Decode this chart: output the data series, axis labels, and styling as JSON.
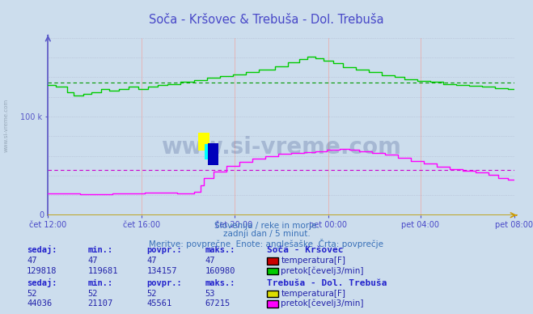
{
  "title": "Soča - Kršovec & Trebuša - Dol. Trebuša",
  "subtitle1": "Slovenija / reke in morje.",
  "subtitle2": "zadnji dan / 5 minut.",
  "subtitle3": "Meritve: povprečne  Enote: anglešaške  Črta: povprečje",
  "bg_color": "#ccdded",
  "plot_bg_color": "#ccdded",
  "title_color": "#4848c8",
  "subtitle_color": "#3870b8",
  "axis_color": "#5858c8",
  "grid_v_color": "#e8b0b0",
  "grid_h_color": "#b0b8d0",
  "watermark_text": "www.si-vreme.com",
  "watermark_color": "#203878",
  "watermark_alpha": 0.22,
  "xlabel_color": "#4848c8",
  "ylabel_color": "#4848c8",
  "ytick_label": "100 k",
  "ytick_value": 100000,
  "ymax": 180000,
  "ymin": 0,
  "x_tick_labels": [
    "čet 12:00",
    "čet 16:00",
    "čet 20:00",
    "pet 00:00",
    "pet 04:00",
    "pet 08:00"
  ],
  "x_tick_positions_frac": [
    0.0,
    0.2,
    0.4,
    0.6,
    0.8,
    1.0
  ],
  "total_points": 289,
  "line1_color": "#00cc00",
  "line1_avg": 134157,
  "line1_min": 119681,
  "line1_max": 160980,
  "line2_color": "#ff00ff",
  "line2_avg": 45561,
  "line2_min": 21107,
  "line2_max": 67215,
  "avg_line1_color": "#009900",
  "avg_line2_color": "#cc00cc",
  "zero_line_color": "#bb9900",
  "left_axis_color": "#5858c8",
  "bottom_axis_color": "#cc9900",
  "table_text_color": "#2222aa",
  "table_bold_color": "#2222cc",
  "station1_name": "Soča - Kršovec",
  "station2_name": "Trebuša - Dol. Trebuša",
  "s1_temp_color": "#cc0000",
  "s1_flow_color": "#00cc00",
  "s2_temp_color": "#dddd00",
  "s2_flow_color": "#ff00ff",
  "s1_sedaj": 129818,
  "s1_min": 119681,
  "s1_povpr": 134157,
  "s1_maks": 160980,
  "s1_temp_sedaj": 47,
  "s1_temp_min": 47,
  "s1_temp_povpr": 47,
  "s1_temp_maks": 47,
  "s2_sedaj": 44036,
  "s2_min": 21107,
  "s2_povpr": 45561,
  "s2_maks": 67215,
  "s2_temp_sedaj": 52,
  "s2_temp_min": 52,
  "s2_temp_povpr": 52,
  "s2_temp_maks": 53,
  "logo_yellow": "#ffff00",
  "logo_cyan": "#00ffff",
  "logo_blue": "#0000bb",
  "left_label": "www.si-vreme.com",
  "left_label_color": "#8899aa"
}
